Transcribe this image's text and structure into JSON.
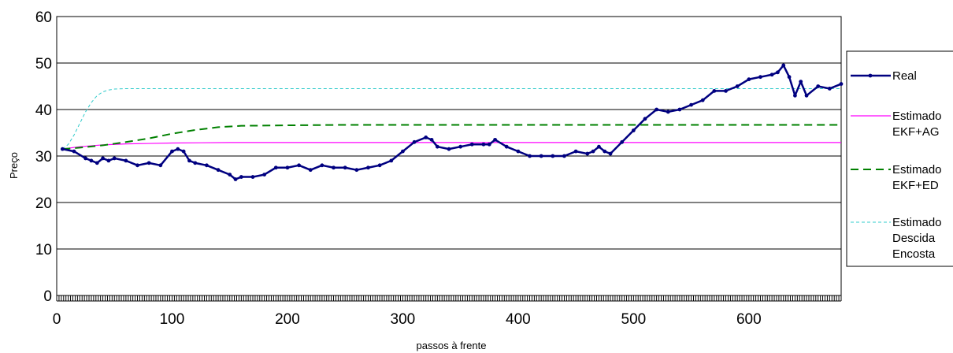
{
  "chart_data": {
    "type": "line",
    "title": "",
    "xlabel": "passos à frente",
    "ylabel": "Preço",
    "xlim": [
      0,
      680
    ],
    "ylim": [
      0,
      60
    ],
    "x_ticks": [
      0,
      100,
      200,
      300,
      400,
      500,
      600
    ],
    "y_ticks": [
      0,
      10,
      20,
      30,
      40,
      50,
      60
    ],
    "grid": "horizontal",
    "legend_position": "right",
    "series": [
      {
        "name": "Real",
        "color": "#000080",
        "style": "solid-markers",
        "x": [
          5,
          15,
          25,
          30,
          35,
          40,
          45,
          50,
          60,
          70,
          80,
          90,
          100,
          105,
          110,
          115,
          120,
          130,
          140,
          150,
          155,
          160,
          170,
          180,
          190,
          200,
          210,
          220,
          230,
          240,
          250,
          260,
          270,
          280,
          290,
          300,
          310,
          320,
          325,
          330,
          340,
          350,
          360,
          370,
          375,
          380,
          390,
          400,
          410,
          420,
          430,
          440,
          450,
          460,
          465,
          470,
          475,
          480,
          490,
          500,
          510,
          520,
          530,
          540,
          550,
          560,
          570,
          580,
          590,
          600,
          610,
          620,
          625,
          630,
          635,
          640,
          645,
          650,
          660,
          670,
          680
        ],
        "y": [
          31.5,
          31,
          29.5,
          29,
          28.5,
          29.5,
          29,
          29.5,
          29,
          28,
          28.5,
          28,
          31,
          31.5,
          31,
          29,
          28.5,
          28,
          27,
          26,
          25,
          25.5,
          25.5,
          26,
          27.5,
          27.5,
          28,
          27,
          28,
          27.5,
          27.5,
          27,
          27.5,
          28,
          29,
          31,
          33,
          34,
          33.5,
          32,
          31.5,
          32,
          32.5,
          32.5,
          32.5,
          33.5,
          32,
          31,
          30,
          30,
          30,
          30,
          31,
          30.5,
          31,
          32,
          31,
          30.5,
          33,
          35.5,
          38,
          40,
          39.5,
          40,
          41,
          42,
          44,
          44,
          45,
          46.5,
          47,
          47.5,
          48,
          49.5,
          47,
          43,
          46,
          43,
          45,
          44.5,
          45.5
        ]
      },
      {
        "name": "Estimado EKF+AG",
        "color": "#ff00ff",
        "style": "solid",
        "x": [
          5,
          20,
          40,
          60,
          80,
          100,
          150,
          680
        ],
        "y": [
          31.5,
          32,
          32.4,
          32.6,
          32.7,
          32.8,
          32.9,
          32.9
        ]
      },
      {
        "name": "Estimado EKF+ED",
        "color": "#008000",
        "style": "dashed",
        "x": [
          5,
          20,
          40,
          60,
          80,
          100,
          120,
          140,
          160,
          200,
          250,
          680
        ],
        "y": [
          31.5,
          31.8,
          32.3,
          33,
          33.8,
          34.8,
          35.6,
          36.2,
          36.5,
          36.6,
          36.7,
          36.7
        ]
      },
      {
        "name": "Estimado Descida Encosta",
        "color": "#33cccc",
        "style": "dashed-fine",
        "x": [
          5,
          10,
          15,
          20,
          25,
          30,
          35,
          40,
          45,
          50,
          60,
          70,
          100,
          680
        ],
        "y": [
          31.5,
          32.5,
          34.5,
          37,
          39.5,
          41.5,
          43,
          43.8,
          44.2,
          44.4,
          44.5,
          44.5,
          44.5,
          44.5
        ]
      }
    ],
    "legend": [
      [
        "Real"
      ],
      [
        "Estimado",
        "EKF+AG"
      ],
      [
        "Estimado",
        "EKF+ED"
      ],
      [
        "Estimado",
        "Descida",
        "Encosta"
      ]
    ]
  }
}
